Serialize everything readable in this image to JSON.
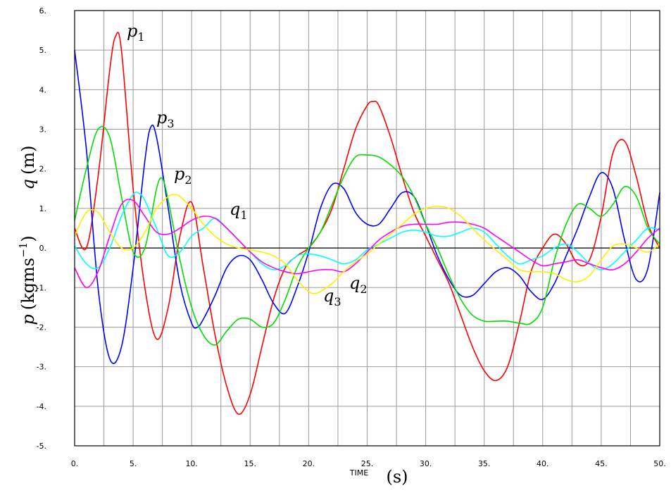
{
  "chart_data": {
    "type": "line",
    "xlim": [
      0,
      50
    ],
    "ylim": [
      -5,
      6
    ],
    "grid": true,
    "x_ticks": [
      "0.",
      "5.",
      "10.",
      "15.",
      "20.",
      "25.",
      "30.",
      "35.",
      "40.",
      "45.",
      "50."
    ],
    "y_ticks": [
      "6.",
      "5.",
      "4.",
      "3.",
      "2.",
      "1.",
      "0.",
      "-1.",
      "-2.",
      "-3.",
      "-4.",
      "-5."
    ],
    "xlabel_small": "TIME",
    "xlabel_unit": "(s)",
    "ylabel_q": "q",
    "ylabel_q_unit": "(m)",
    "ylabel_p": "p",
    "ylabel_p_unit": "(kgms",
    "ylabel_p_exp": "−1",
    "ylabel_p_close": ")",
    "annotations": [
      {
        "base": "p",
        "sub": "1"
      },
      {
        "base": "p",
        "sub": "3"
      },
      {
        "base": "p",
        "sub": "2"
      },
      {
        "base": "q",
        "sub": "1"
      },
      {
        "base": "q",
        "sub": "2"
      },
      {
        "base": "q",
        "sub": "3"
      }
    ],
    "series": [
      {
        "color": "#ff0000",
        "x": [
          0,
          1,
          2,
          3,
          3.5,
          4,
          5,
          6,
          7,
          8,
          9,
          10,
          11,
          12,
          13,
          14,
          15,
          16,
          17,
          18,
          19,
          20,
          21,
          22,
          23,
          24,
          25,
          25.5,
          26,
          27,
          28,
          29,
          30,
          31,
          32,
          33,
          34,
          35,
          36,
          37,
          38,
          39,
          40,
          41,
          42,
          43,
          44,
          45,
          46,
          47,
          48,
          49,
          50
        ],
        "y": [
          0.5,
          0,
          1.8,
          4.5,
          5.35,
          5.0,
          1.5,
          -1.0,
          -2.3,
          -1.5,
          0.3,
          1.15,
          -0.5,
          -2.2,
          -3.5,
          -4.2,
          -3.7,
          -2.5,
          -1.3,
          -0.5,
          -0.2,
          0,
          0.4,
          1.0,
          2.0,
          3.0,
          3.6,
          3.7,
          3.6,
          2.8,
          1.8,
          0.9,
          0.3,
          -0.3,
          -0.9,
          -1.7,
          -2.5,
          -3.1,
          -3.35,
          -3.0,
          -1.9,
          -0.6,
          0,
          0.35,
          0.1,
          -0.4,
          -0.3,
          0.8,
          2.4,
          2.7,
          1.8,
          0.6,
          0
        ]
      },
      {
        "color": "#0000ff",
        "x": [
          0,
          1,
          2,
          3,
          4,
          5,
          6,
          6.5,
          7,
          8,
          9,
          10,
          10.5,
          11,
          12,
          13,
          14,
          15,
          16,
          17,
          18,
          19,
          20,
          21,
          22,
          23,
          24,
          25,
          26,
          27,
          28,
          29,
          30,
          31,
          32,
          33,
          34,
          35,
          36,
          37,
          38,
          39,
          40,
          41,
          42,
          43,
          44,
          45,
          46,
          47,
          48,
          49,
          50
        ],
        "y": [
          5.0,
          2.5,
          -1.0,
          -2.8,
          -2.5,
          -0.5,
          2.2,
          3.05,
          2.8,
          1.0,
          -0.9,
          -1.9,
          -2.0,
          -1.8,
          -1.2,
          -0.5,
          -0.2,
          -0.3,
          -0.8,
          -1.4,
          -1.65,
          -1.0,
          -0.1,
          1.0,
          1.6,
          1.5,
          0.9,
          0.6,
          0.6,
          1.0,
          1.4,
          1.3,
          0.6,
          -0.2,
          -0.8,
          -1.2,
          -1.2,
          -0.9,
          -0.6,
          -0.5,
          -0.7,
          -1.1,
          -1.3,
          -0.9,
          -0.2,
          0.5,
          1.3,
          1.9,
          1.5,
          0.2,
          -0.8,
          -0.5,
          1.4
        ]
      },
      {
        "color": "#00dd00",
        "x": [
          0,
          1,
          2,
          3,
          4,
          5,
          6,
          7,
          7.5,
          8,
          9,
          10,
          11,
          12,
          13,
          14,
          15,
          16,
          17,
          18,
          19,
          20,
          21,
          22,
          23,
          24,
          25,
          26,
          27,
          28,
          29,
          30,
          31,
          32,
          33,
          34,
          35,
          36,
          37,
          38,
          39,
          40,
          41,
          42,
          43,
          44,
          45,
          46,
          47,
          48,
          49,
          50
        ],
        "y": [
          0.7,
          2.0,
          3.0,
          2.8,
          1.3,
          -0.1,
          0,
          1.5,
          1.75,
          1.2,
          -0.3,
          -1.5,
          -2.2,
          -2.45,
          -2.1,
          -1.8,
          -1.8,
          -2.0,
          -1.9,
          -1.3,
          -0.5,
          0,
          0.4,
          1.1,
          1.8,
          2.3,
          2.35,
          2.3,
          2.1,
          1.8,
          1.3,
          0.6,
          0,
          -0.7,
          -1.3,
          -1.7,
          -1.85,
          -1.85,
          -1.85,
          -1.9,
          -1.9,
          -1.5,
          -0.3,
          0.6,
          1.1,
          1.0,
          0.8,
          1.1,
          1.55,
          1.3,
          0.5,
          0.1
        ]
      },
      {
        "color": "#00ffff",
        "x": [
          0,
          1,
          2,
          3,
          4,
          5,
          5.5,
          6,
          7,
          8,
          9,
          10,
          11,
          12,
          13,
          14,
          15,
          16,
          17,
          18,
          19,
          20,
          21,
          22,
          23,
          24,
          25,
          26,
          27,
          28,
          29,
          30,
          31,
          32,
          33,
          34,
          35,
          36,
          37,
          38,
          39,
          40,
          41,
          42,
          43,
          44,
          45,
          46,
          47,
          48,
          49,
          50
        ],
        "y": [
          0.05,
          -0.4,
          -0.5,
          0,
          0.8,
          1.35,
          1.38,
          1.2,
          0.5,
          -0.2,
          -0.1,
          0.3,
          0.5,
          0.75,
          0.5,
          0.2,
          -0.1,
          -0.4,
          -0.55,
          -0.45,
          -0.2,
          -0.15,
          -0.2,
          -0.3,
          -0.4,
          -0.3,
          -0.05,
          0.1,
          0.25,
          0.4,
          0.45,
          0.4,
          0.3,
          0.3,
          0.4,
          0.5,
          0.4,
          0.1,
          -0.2,
          -0.4,
          -0.3,
          -0.2,
          0,
          0.1,
          -0.1,
          -0.4,
          -0.55,
          -0.4,
          -0.1,
          0.2,
          0.5,
          0.45
        ]
      },
      {
        "color": "#ff00ff",
        "x": [
          0,
          1,
          2,
          3,
          4,
          5,
          6,
          7,
          8,
          9,
          10,
          11,
          12,
          13,
          14,
          15,
          16,
          17,
          18,
          19,
          20,
          21,
          22,
          23,
          24,
          25,
          26,
          27,
          28,
          29,
          30,
          31,
          32,
          33,
          34,
          35,
          36,
          37,
          38,
          39,
          40,
          41,
          42,
          43,
          44,
          45,
          46,
          47,
          48,
          49,
          50
        ],
        "y": [
          -0.5,
          -1.0,
          -0.6,
          0.3,
          1.1,
          1.2,
          0.8,
          0.4,
          0.35,
          0.5,
          0.7,
          0.8,
          0.75,
          0.5,
          0.2,
          -0.1,
          -0.35,
          -0.5,
          -0.6,
          -0.65,
          -0.6,
          -0.55,
          -0.55,
          -0.6,
          -0.4,
          -0.1,
          0.2,
          0.4,
          0.55,
          0.6,
          0.6,
          0.6,
          0.65,
          0.65,
          0.6,
          0.5,
          0.3,
          0.1,
          -0.1,
          -0.3,
          -0.45,
          -0.4,
          -0.35,
          -0.3,
          -0.4,
          -0.5,
          -0.55,
          -0.4,
          -0.1,
          0.25,
          0.5
        ]
      },
      {
        "color": "#ffee00",
        "x": [
          0,
          1,
          2,
          3,
          4,
          5,
          6,
          7,
          8,
          8.5,
          9,
          10,
          11,
          12,
          13,
          14,
          15,
          16,
          17,
          18,
          19,
          20,
          20.5,
          21,
          22,
          23,
          24,
          25,
          26,
          27,
          28,
          29,
          30,
          31,
          32,
          33,
          34,
          35,
          36,
          37,
          38,
          39,
          40,
          41,
          42,
          43,
          44,
          45,
          46,
          47,
          48,
          49,
          50
        ],
        "y": [
          0.3,
          0.9,
          0.9,
          0.4,
          0,
          0,
          0.4,
          1.0,
          1.3,
          1.35,
          1.3,
          1.0,
          0.6,
          0.3,
          0.1,
          0,
          -0.05,
          -0.1,
          -0.2,
          -0.4,
          -0.8,
          -1.1,
          -1.15,
          -1.1,
          -0.9,
          -0.6,
          -0.35,
          -0.15,
          0.1,
          0.35,
          0.6,
          0.85,
          1.0,
          1.05,
          1.0,
          0.8,
          0.5,
          0.2,
          -0.05,
          -0.3,
          -0.55,
          -0.6,
          -0.6,
          -0.65,
          -0.8,
          -0.85,
          -0.7,
          -0.3,
          0.05,
          0.1,
          0,
          -0.1,
          0.1
        ]
      }
    ]
  }
}
